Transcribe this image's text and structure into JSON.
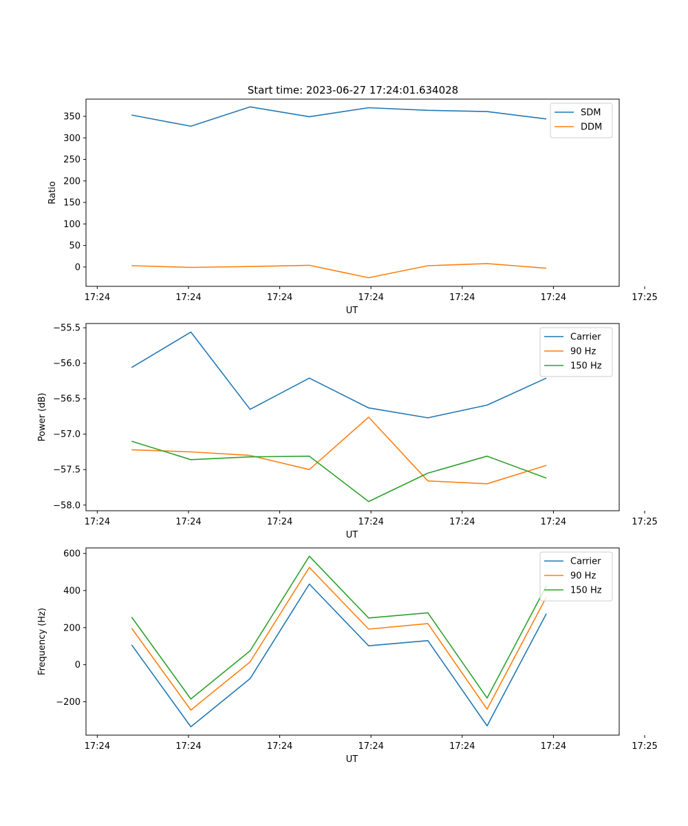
{
  "figure": {
    "title": "Start time: 2023-06-27 17:24:01.634028"
  },
  "chart_data": [
    {
      "type": "line",
      "title": "Start time: 2023-06-27 17:24:01.634028",
      "xlabel": "UT",
      "ylabel": "Ratio",
      "x": [
        1,
        2,
        3,
        4,
        5,
        6,
        7,
        8
      ],
      "xlim": [
        0.23,
        9.23
      ],
      "x_ticks": [
        {
          "x": 0.42,
          "label": "17:24"
        },
        {
          "x": 1.96,
          "label": "17:24"
        },
        {
          "x": 3.5,
          "label": "17:24"
        },
        {
          "x": 5.04,
          "label": "17:24"
        },
        {
          "x": 6.58,
          "label": "17:24"
        },
        {
          "x": 8.12,
          "label": "17:24"
        },
        {
          "x": 9.66,
          "label": "17:25"
        }
      ],
      "ylim": [
        -45,
        390
      ],
      "y_ticks": [
        0,
        50,
        100,
        150,
        200,
        250,
        300,
        350
      ],
      "grid": false,
      "legend": "top-right",
      "series": [
        {
          "name": "SDM",
          "color": "#1f77b4",
          "values": [
            353,
            327,
            372,
            349,
            370,
            364,
            361,
            344
          ]
        },
        {
          "name": "DDM",
          "color": "#ff7f0e",
          "values": [
            3,
            -1,
            1,
            4,
            -25,
            3,
            8,
            -3
          ]
        }
      ]
    },
    {
      "type": "line",
      "xlabel": "UT",
      "ylabel": "Power (dB)",
      "x": [
        1,
        2,
        3,
        4,
        5,
        6,
        7,
        8
      ],
      "xlim": [
        0.23,
        9.23
      ],
      "x_ticks": [
        {
          "x": 0.42,
          "label": "17:24"
        },
        {
          "x": 1.96,
          "label": "17:24"
        },
        {
          "x": 3.5,
          "label": "17:24"
        },
        {
          "x": 5.04,
          "label": "17:24"
        },
        {
          "x": 6.58,
          "label": "17:24"
        },
        {
          "x": 8.12,
          "label": "17:24"
        },
        {
          "x": 9.66,
          "label": "17:25"
        }
      ],
      "ylim": [
        -58.08,
        -55.44
      ],
      "y_ticks": [
        -58.0,
        -57.5,
        -57.0,
        -56.5,
        -56.0,
        -55.5
      ],
      "y_tick_labels": [
        "−58.0",
        "−57.5",
        "−57.0",
        "−56.5",
        "−56.0",
        "−55.5"
      ],
      "grid": false,
      "legend": "top-right",
      "series": [
        {
          "name": "Carrier",
          "color": "#1f77b4",
          "values": [
            -56.06,
            -55.56,
            -56.65,
            -56.21,
            -56.63,
            -56.77,
            -56.59,
            -56.21
          ]
        },
        {
          "name": "90 Hz",
          "color": "#ff7f0e",
          "values": [
            -57.22,
            -57.25,
            -57.3,
            -57.5,
            -56.76,
            -57.66,
            -57.7,
            -57.44
          ]
        },
        {
          "name": "150 Hz",
          "color": "#2ca02c",
          "values": [
            -57.1,
            -57.36,
            -57.32,
            -57.31,
            -57.95,
            -57.55,
            -57.31,
            -57.62
          ]
        }
      ]
    },
    {
      "type": "line",
      "xlabel": "UT",
      "ylabel": "Frequency (Hz)",
      "x": [
        1,
        2,
        3,
        4,
        5,
        6,
        7,
        8
      ],
      "xlim": [
        0.23,
        9.23
      ],
      "x_ticks": [
        {
          "x": 0.42,
          "label": "17:24"
        },
        {
          "x": 1.96,
          "label": "17:24"
        },
        {
          "x": 3.5,
          "label": "17:24"
        },
        {
          "x": 5.04,
          "label": "17:24"
        },
        {
          "x": 6.58,
          "label": "17:24"
        },
        {
          "x": 8.12,
          "label": "17:24"
        },
        {
          "x": 9.66,
          "label": "17:25"
        }
      ],
      "ylim": [
        -380,
        630
      ],
      "y_ticks": [
        -200,
        0,
        200,
        400,
        600
      ],
      "y_tick_labels": [
        "−200",
        "0",
        "200",
        "400",
        "600"
      ],
      "grid": false,
      "legend": "top-right",
      "series": [
        {
          "name": "Carrier",
          "color": "#1f77b4",
          "values": [
            107,
            -335,
            -75,
            435,
            102,
            130,
            -330,
            275
          ]
        },
        {
          "name": "90 Hz",
          "color": "#ff7f0e",
          "values": [
            197,
            -245,
            15,
            525,
            192,
            222,
            -240,
            365
          ]
        },
        {
          "name": "150 Hz",
          "color": "#2ca02c",
          "values": [
            257,
            -185,
            75,
            585,
            252,
            280,
            -180,
            425
          ]
        }
      ]
    }
  ]
}
